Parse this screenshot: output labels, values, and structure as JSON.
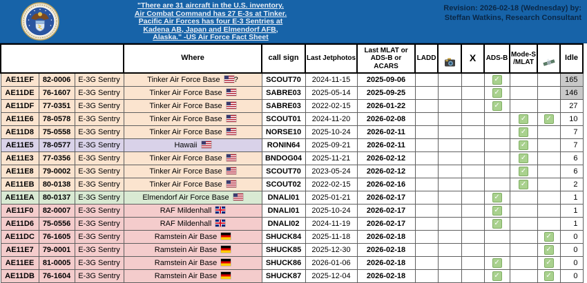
{
  "banner": {
    "seal_icon": "us-air-force-seal",
    "quote": "\"There are 31 aircraft in the U.S. inventory.\nAir Combat Command has 27 E-3s at Tinker.\nPacific Air Forces has four E-3 Sentries at\nKadena AB, Japan and Elmendorf AFB,\nAlaska.\" -US Air Force Fact Sheet",
    "revision": "Revision: 2026-02-18 (Wednesday) by:\nSteffan Watkins, Research Consultant"
  },
  "colors": {
    "banner_blue": "#1763a8",
    "revision_text": "#0a2746",
    "peach": "#fbe4cf",
    "lavender": "#d9d2e9",
    "green": "#d9ead3",
    "pink": "#f4cccc",
    "idle_gray": "#c9c9c9",
    "check_green": "#a9d18e"
  },
  "table": {
    "check_glyph": "✓",
    "headers": {
      "blank": "",
      "where": "Where",
      "callsign": "call sign",
      "jetphotos": "Last Jetphotos",
      "mlat": "Last MLAT or\nADS-B or\nACARS",
      "ladd": "LADD",
      "camera_icon": "camera-icon",
      "x": "X",
      "adsb": "ADS-B",
      "modes": "Mode-S\n/MLAT",
      "sat_icon": "satellite-icon",
      "idle": "Idle"
    },
    "rows": [
      {
        "hex": "AE11EF",
        "serial": "82-0006",
        "type": "E-3G Sentry",
        "where": "Tinker Air Force Base",
        "flag": "us",
        "suffix": "?",
        "callsign": "SCOUT70",
        "jetphotos": "2024-11-15",
        "mlat": "2025-09-06",
        "ladd": false,
        "camera": false,
        "x": false,
        "adsb": true,
        "modes": false,
        "sat": false,
        "idle": "165",
        "idle_gray": true,
        "color": "peach"
      },
      {
        "hex": "AE11DE",
        "serial": "76-1607",
        "type": "E-3G Sentry",
        "where": "Tinker Air Force Base",
        "flag": "us",
        "suffix": "",
        "callsign": "SABRE03",
        "jetphotos": "2025-05-14",
        "mlat": "2025-09-25",
        "ladd": false,
        "camera": false,
        "x": false,
        "adsb": true,
        "modes": false,
        "sat": false,
        "idle": "146",
        "idle_gray": true,
        "color": "peach"
      },
      {
        "hex": "AE11DF",
        "serial": "77-0351",
        "type": "E-3G Sentry",
        "where": "Tinker Air Force Base",
        "flag": "us",
        "suffix": "",
        "callsign": "SABRE03",
        "jetphotos": "2022-02-15",
        "mlat": "2026-01-22",
        "ladd": false,
        "camera": false,
        "x": false,
        "adsb": true,
        "modes": false,
        "sat": false,
        "idle": "27",
        "idle_gray": false,
        "color": "peach"
      },
      {
        "hex": "AE11E6",
        "serial": "78-0578",
        "type": "E-3G Sentry",
        "where": "Tinker Air Force Base",
        "flag": "us",
        "suffix": "",
        "callsign": "SCOUT01",
        "jetphotos": "2024-11-20",
        "mlat": "2026-02-08",
        "ladd": false,
        "camera": false,
        "x": false,
        "adsb": false,
        "modes": true,
        "sat": true,
        "idle": "10",
        "idle_gray": false,
        "color": "peach"
      },
      {
        "hex": "AE11D8",
        "serial": "75-0558",
        "type": "E-3G Sentry",
        "where": "Tinker Air Force Base",
        "flag": "us",
        "suffix": "",
        "callsign": "NORSE10",
        "jetphotos": "2025-10-24",
        "mlat": "2026-02-11",
        "ladd": false,
        "camera": false,
        "x": false,
        "adsb": false,
        "modes": true,
        "sat": false,
        "idle": "7",
        "idle_gray": false,
        "color": "peach"
      },
      {
        "hex": "AE11E5",
        "serial": "78-0577",
        "type": "E-3G Sentry",
        "where": "Hawaii",
        "flag": "us",
        "suffix": "",
        "callsign": "RONIN64",
        "jetphotos": "2025-09-21",
        "mlat": "2026-02-11",
        "ladd": false,
        "camera": false,
        "x": false,
        "adsb": false,
        "modes": true,
        "sat": false,
        "idle": "7",
        "idle_gray": false,
        "color": "lavender"
      },
      {
        "hex": "AE11E3",
        "serial": "77-0356",
        "type": "E-3G Sentry",
        "where": "Tinker Air Force Base",
        "flag": "us",
        "suffix": "",
        "callsign": "BNDOG04",
        "jetphotos": "2025-11-21",
        "mlat": "2026-02-12",
        "ladd": false,
        "camera": false,
        "x": false,
        "adsb": false,
        "modes": true,
        "sat": false,
        "idle": "6",
        "idle_gray": false,
        "color": "peach"
      },
      {
        "hex": "AE11E8",
        "serial": "79-0002",
        "type": "E-3G Sentry",
        "where": "Tinker Air Force Base",
        "flag": "us",
        "suffix": "",
        "callsign": "SCOUT70",
        "jetphotos": "2023-05-24",
        "mlat": "2026-02-12",
        "ladd": false,
        "camera": false,
        "x": false,
        "adsb": false,
        "modes": true,
        "sat": false,
        "idle": "6",
        "idle_gray": false,
        "color": "peach"
      },
      {
        "hex": "AE11EB",
        "serial": "80-0138",
        "type": "E-3G Sentry",
        "where": "Tinker Air Force Base",
        "flag": "us",
        "suffix": "",
        "callsign": "SCOUT02",
        "jetphotos": "2022-02-15",
        "mlat": "2026-02-16",
        "ladd": false,
        "camera": false,
        "x": false,
        "adsb": false,
        "modes": true,
        "sat": false,
        "idle": "2",
        "idle_gray": false,
        "color": "peach"
      },
      {
        "hex": "AE11EA",
        "serial": "80-0137",
        "type": "E-3G Sentry",
        "where": "Elmendorf Air Force Base",
        "flag": "us",
        "suffix": "",
        "callsign": "DNALI01",
        "jetphotos": "2025-01-21",
        "mlat": "2026-02-17",
        "ladd": false,
        "camera": false,
        "x": false,
        "adsb": true,
        "modes": false,
        "sat": false,
        "idle": "1",
        "idle_gray": false,
        "color": "green"
      },
      {
        "hex": "AE11F0",
        "serial": "82-0007",
        "type": "E-3G Sentry",
        "where": "RAF Mildenhall",
        "flag": "gb",
        "suffix": "",
        "callsign": "DNALI01",
        "jetphotos": "2025-10-24",
        "mlat": "2026-02-17",
        "ladd": false,
        "camera": false,
        "x": false,
        "adsb": true,
        "modes": false,
        "sat": false,
        "idle": "1",
        "idle_gray": false,
        "color": "pink"
      },
      {
        "hex": "AE11D6",
        "serial": "75-0556",
        "type": "E-3G Sentry",
        "where": "RAF Mildenhall",
        "flag": "gb",
        "suffix": "",
        "callsign": "DNALI02",
        "jetphotos": "2024-11-19",
        "mlat": "2026-02-17",
        "ladd": false,
        "camera": false,
        "x": false,
        "adsb": true,
        "modes": false,
        "sat": false,
        "idle": "1",
        "idle_gray": false,
        "color": "pink"
      },
      {
        "hex": "AE11DC",
        "serial": "76-1605",
        "type": "E-3G Sentry",
        "where": "Ramstein Air Base",
        "flag": "de",
        "suffix": "",
        "callsign": "SHUCK84",
        "jetphotos": "2025-11-18",
        "mlat": "2026-02-18",
        "ladd": false,
        "camera": false,
        "x": false,
        "adsb": false,
        "modes": false,
        "sat": true,
        "idle": "0",
        "idle_gray": false,
        "color": "pink"
      },
      {
        "hex": "AE11E7",
        "serial": "79-0001",
        "type": "E-3G Sentry",
        "where": "Ramstein Air Base",
        "flag": "de",
        "suffix": "",
        "callsign": "SHUCK85",
        "jetphotos": "2025-12-30",
        "mlat": "2026-02-18",
        "ladd": false,
        "camera": false,
        "x": false,
        "adsb": false,
        "modes": false,
        "sat": true,
        "idle": "0",
        "idle_gray": false,
        "color": "pink"
      },
      {
        "hex": "AE11EE",
        "serial": "81-0005",
        "type": "E-3G Sentry",
        "where": "Ramstein Air Base",
        "flag": "de",
        "suffix": "",
        "callsign": "SHUCK86",
        "jetphotos": "2026-01-06",
        "mlat": "2026-02-18",
        "ladd": false,
        "camera": false,
        "x": false,
        "adsb": true,
        "modes": false,
        "sat": true,
        "idle": "0",
        "idle_gray": false,
        "color": "pink"
      },
      {
        "hex": "AE11DB",
        "serial": "76-1604",
        "type": "E-3G Sentry",
        "where": "Ramstein Air Base",
        "flag": "de",
        "suffix": "",
        "callsign": "SHUCK87",
        "jetphotos": "2025-12-04",
        "mlat": "2026-02-18",
        "ladd": false,
        "camera": false,
        "x": false,
        "adsb": true,
        "modes": false,
        "sat": true,
        "idle": "0",
        "idle_gray": false,
        "color": "pink"
      }
    ]
  }
}
